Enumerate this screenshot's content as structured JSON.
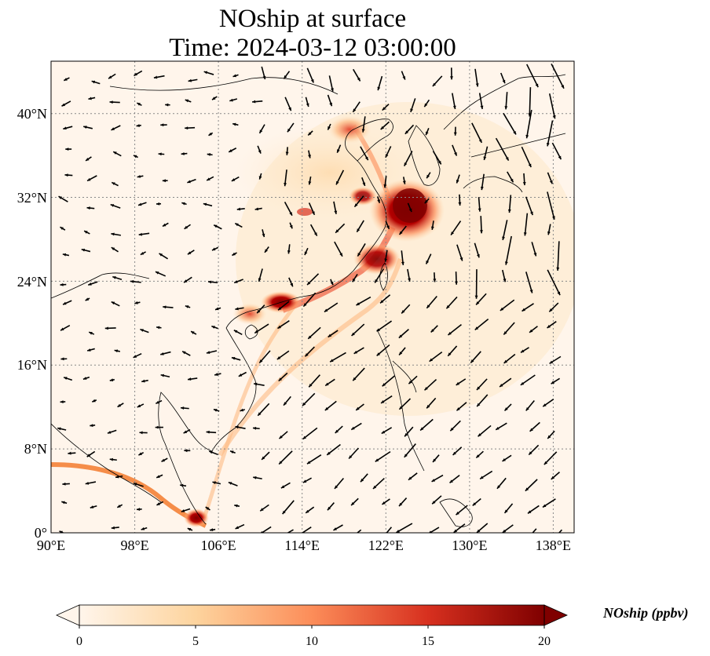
{
  "title": {
    "line1": "NOship at surface",
    "line2": "Time: 2024-03-12 03:00:00"
  },
  "axes": {
    "lon_range": [
      90,
      140
    ],
    "lat_range": [
      0,
      45
    ],
    "x_ticks": [
      "90°E",
      "98°E",
      "106°E",
      "114°E",
      "122°E",
      "130°E",
      "138°E"
    ],
    "y_ticks": [
      "0°",
      "8°N",
      "16°N",
      "24°N",
      "32°N",
      "40°N"
    ],
    "grid": "dotted gray"
  },
  "colorbar": {
    "label": "NOship (ppbv)",
    "ticks": [
      "0",
      "5",
      "10",
      "15",
      "20"
    ],
    "range": [
      0,
      20
    ],
    "extend": "both",
    "colors": [
      "#fff5eb",
      "#fdd49e",
      "#fc8d59",
      "#d7301f",
      "#7f0000"
    ]
  },
  "map_layers": {
    "field": "NOship concentration",
    "hotspots": [
      {
        "name": "Yangtze River Delta / East China Sea",
        "lon": 124.5,
        "lat": 30.5,
        "level": "high"
      },
      {
        "name": "Pearl River Delta",
        "lon": 113.5,
        "lat": 22.0,
        "level": "high"
      },
      {
        "name": "Bohai Sea",
        "lon": 119.5,
        "lat": 39.0,
        "level": "medium"
      },
      {
        "name": "Strait of Malacca / Singapore",
        "lon": 104.0,
        "lat": 1.5,
        "level": "high"
      }
    ],
    "vectors": "surface wind arrows"
  }
}
